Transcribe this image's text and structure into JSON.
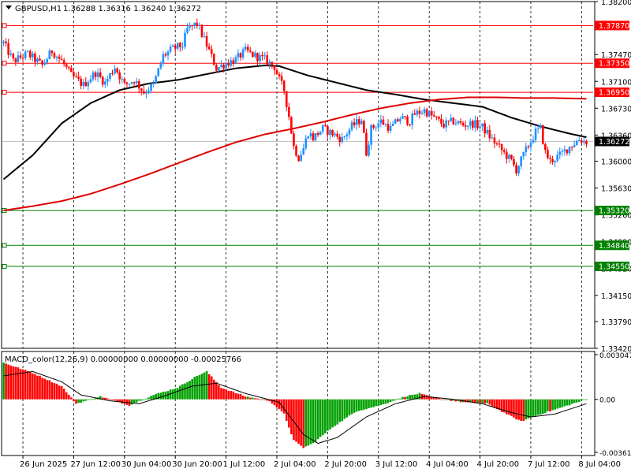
{
  "header": {
    "symbol": "GBPUSD,H1",
    "ohlc": "1.36288 1.36316 1.36240 1.36272",
    "indicator": "MACD_color(12,26,9) 0.00000000 0.00000000 -0.00025766"
  },
  "colors": {
    "bull": "#1e90ff",
    "bear": "#ff0000",
    "ma_fast": "#000000",
    "ma_slow": "#e00000",
    "resistance": "#ff0000",
    "support": "#008000",
    "macd_pos": "#00a000",
    "macd_neg": "#ff0000"
  },
  "chart_data": [
    {
      "type": "candlestick",
      "title": "GBPUSD,H1",
      "ylim": [
        1.3342,
        1.382
      ],
      "y_ticks": [
        "1.38200",
        "1.37470",
        "1.37100",
        "1.36730",
        "1.36360",
        "1.36000",
        "1.35630",
        "1.35260",
        "1.34890",
        "1.34520",
        "1.34150",
        "1.33790",
        "1.33420"
      ],
      "x_labels": [
        "26 Jun 2025",
        "27 Jun 12:00",
        "30 Jun 04:00",
        "30 Jun 20:00",
        "1 Jul 12:00",
        "2 Jul 04:00",
        "2 Jul 20:00",
        "3 Jul 12:00",
        "4 Jul 04:00",
        "4 Jul 20:00",
        "7 Jul 12:00",
        "8 Jul 04:00"
      ],
      "current_price": {
        "value": 1.36272,
        "label": "1.36272"
      },
      "levels": [
        {
          "value": 1.3787,
          "label": "1.37870",
          "kind": "resistance"
        },
        {
          "value": 1.3735,
          "label": "1.37350",
          "kind": "resistance"
        },
        {
          "value": 1.3695,
          "label": "1.36950",
          "kind": "resistance"
        },
        {
          "value": 1.3532,
          "label": "1.35320",
          "kind": "support"
        },
        {
          "value": 1.3484,
          "label": "1.34840",
          "kind": "support"
        },
        {
          "value": 1.3455,
          "label": "1.34550",
          "kind": "support"
        }
      ],
      "price_path": [
        [
          0,
          1.3763
        ],
        [
          4,
          1.3738
        ],
        [
          10,
          1.3748
        ],
        [
          16,
          1.3732
        ],
        [
          20,
          1.3752
        ],
        [
          24,
          1.3738
        ],
        [
          28,
          1.3718
        ],
        [
          33,
          1.3705
        ],
        [
          38,
          1.3722
        ],
        [
          42,
          1.3708
        ],
        [
          46,
          1.373
        ],
        [
          50,
          1.3705
        ],
        [
          54,
          1.3712
        ],
        [
          58,
          1.3695
        ],
        [
          62,
          1.3705
        ],
        [
          66,
          1.3745
        ],
        [
          70,
          1.3755
        ],
        [
          74,
          1.376
        ],
        [
          76,
          1.3782
        ],
        [
          80,
          1.379
        ],
        [
          84,
          1.376
        ],
        [
          88,
          1.3728
        ],
        [
          92,
          1.3735
        ],
        [
          96,
          1.374
        ],
        [
          100,
          1.3752
        ],
        [
          104,
          1.3745
        ],
        [
          108,
          1.374
        ],
        [
          112,
          1.373
        ],
        [
          114,
          1.3712
        ],
        [
          116,
          1.3698
        ],
        [
          118,
          1.3662
        ],
        [
          120,
          1.362
        ],
        [
          122,
          1.3605
        ],
        [
          124,
          1.3618
        ],
        [
          126,
          1.364
        ],
        [
          128,
          1.3632
        ],
        [
          132,
          1.3645
        ],
        [
          136,
          1.3638
        ],
        [
          140,
          1.363
        ],
        [
          144,
          1.3648
        ],
        [
          148,
          1.3658
        ],
        [
          150,
          1.3612
        ],
        [
          152,
          1.3645
        ],
        [
          156,
          1.3655
        ],
        [
          160,
          1.3645
        ],
        [
          164,
          1.366
        ],
        [
          168,
          1.3655
        ],
        [
          170,
          1.3665
        ],
        [
          174,
          1.367
        ],
        [
          178,
          1.366
        ],
        [
          182,
          1.365
        ],
        [
          186,
          1.3655
        ],
        [
          190,
          1.365
        ],
        [
          194,
          1.3652
        ],
        [
          198,
          1.3647
        ],
        [
          202,
          1.363
        ],
        [
          206,
          1.3615
        ],
        [
          210,
          1.36
        ],
        [
          212,
          1.3588
        ],
        [
          216,
          1.3615
        ],
        [
          220,
          1.364
        ],
        [
          222,
          1.3645
        ],
        [
          224,
          1.3612
        ],
        [
          226,
          1.36
        ],
        [
          230,
          1.3608
        ],
        [
          234,
          1.362
        ],
        [
          238,
          1.363
        ],
        [
          241,
          1.3627
        ]
      ],
      "series": [
        {
          "name": "",
          "role": "ma_fast",
          "points": [
            [
              0,
              1.3575
            ],
            [
              12,
              1.3608
            ],
            [
              24,
              1.3652
            ],
            [
              36,
              1.368
            ],
            [
              48,
              1.3698
            ],
            [
              60,
              1.3707
            ],
            [
              72,
              1.3712
            ],
            [
              84,
              1.372
            ],
            [
              96,
              1.3728
            ],
            [
              108,
              1.3732
            ],
            [
              114,
              1.3731
            ],
            [
              126,
              1.3718
            ],
            [
              138,
              1.3708
            ],
            [
              150,
              1.3698
            ],
            [
              162,
              1.3692
            ],
            [
              174,
              1.3685
            ],
            [
              186,
              1.368
            ],
            [
              198,
              1.3675
            ],
            [
              210,
              1.366
            ],
            [
              222,
              1.3648
            ],
            [
              234,
              1.3638
            ],
            [
              241,
              1.3633
            ]
          ]
        },
        {
          "name": "",
          "role": "ma_slow",
          "points": [
            [
              0,
              1.3532
            ],
            [
              12,
              1.3538
            ],
            [
              24,
              1.3545
            ],
            [
              36,
              1.3555
            ],
            [
              48,
              1.3568
            ],
            [
              60,
              1.3582
            ],
            [
              72,
              1.3597
            ],
            [
              84,
              1.3612
            ],
            [
              96,
              1.3626
            ],
            [
              108,
              1.3637
            ],
            [
              120,
              1.3645
            ],
            [
              132,
              1.3654
            ],
            [
              144,
              1.3664
            ],
            [
              156,
              1.3673
            ],
            [
              168,
              1.368
            ],
            [
              180,
              1.3685
            ],
            [
              192,
              1.3688
            ],
            [
              204,
              1.3688
            ],
            [
              216,
              1.3687
            ],
            [
              228,
              1.3687
            ],
            [
              241,
              1.3686
            ]
          ]
        }
      ]
    },
    {
      "type": "bar",
      "title": "MACD_color(12,26,9)",
      "ylim": [
        -0.003614,
        0.003047
      ],
      "y_ticks": [
        "0.0030476",
        "0.00",
        "-0.003614"
      ],
      "values": [
        [
          0,
          0.0025
        ],
        [
          12,
          0.0018
        ],
        [
          24,
          0.0009
        ],
        [
          30,
          -0.0003
        ],
        [
          40,
          0.0002
        ],
        [
          52,
          -0.0004
        ],
        [
          62,
          0.0003
        ],
        [
          72,
          0.0008
        ],
        [
          80,
          0.0016
        ],
        [
          84,
          0.0019
        ],
        [
          90,
          0.0008
        ],
        [
          100,
          0.0002
        ],
        [
          110,
          -0.0001
        ],
        [
          116,
          -0.001
        ],
        [
          120,
          -0.0028
        ],
        [
          124,
          -0.0033
        ],
        [
          128,
          -0.003
        ],
        [
          136,
          -0.0019
        ],
        [
          146,
          -0.0008
        ],
        [
          156,
          -0.0004
        ],
        [
          166,
          0.0002
        ],
        [
          172,
          0.0004
        ],
        [
          178,
          0.0001
        ],
        [
          190,
          -0.0002
        ],
        [
          200,
          -0.0003
        ],
        [
          208,
          -0.001
        ],
        [
          214,
          -0.0015
        ],
        [
          222,
          -0.001
        ],
        [
          228,
          -0.0007
        ],
        [
          241,
          0.0
        ]
      ],
      "signal": [
        [
          0,
          0.0016
        ],
        [
          12,
          0.0019
        ],
        [
          24,
          0.0012
        ],
        [
          32,
          0.0003
        ],
        [
          44,
          -0.0001
        ],
        [
          56,
          -0.0003
        ],
        [
          66,
          0.0002
        ],
        [
          78,
          0.0009
        ],
        [
          88,
          0.0011
        ],
        [
          100,
          0.0004
        ],
        [
          114,
          -0.0002
        ],
        [
          124,
          -0.0024
        ],
        [
          130,
          -0.003
        ],
        [
          138,
          -0.0026
        ],
        [
          150,
          -0.0012
        ],
        [
          162,
          -0.0003
        ],
        [
          174,
          0.0002
        ],
        [
          186,
          0.0
        ],
        [
          198,
          -0.0003
        ],
        [
          210,
          -0.0009
        ],
        [
          218,
          -0.0012
        ],
        [
          228,
          -0.001
        ],
        [
          241,
          -0.0003
        ]
      ]
    }
  ]
}
